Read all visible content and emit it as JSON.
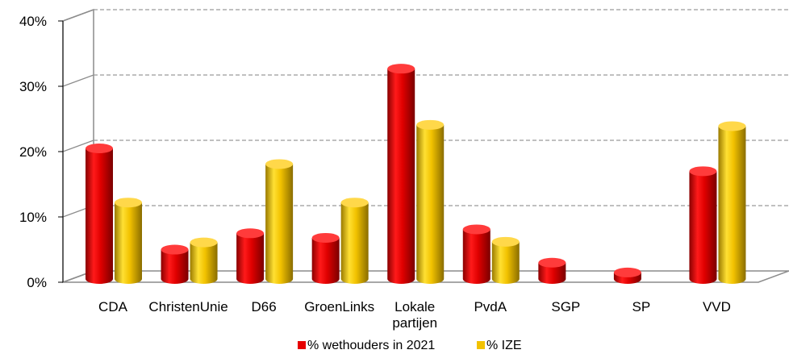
{
  "chart_data": {
    "type": "bar",
    "categories": [
      "CDA",
      "ChristenUnie",
      "D66",
      "GroenLinks",
      "Lokale partijen",
      "PvdA",
      "SGP",
      "SP",
      "VVD"
    ],
    "category_lines": [
      [
        "CDA"
      ],
      [
        "ChristenUnie"
      ],
      [
        "D66"
      ],
      [
        "GroenLinks"
      ],
      [
        "Lokale",
        "partijen"
      ],
      [
        "PvdA"
      ],
      [
        "SGP"
      ],
      [
        "SP"
      ],
      [
        "VVD"
      ]
    ],
    "series": [
      {
        "name": "% wethouders in 2021",
        "color": "#e60000",
        "values": [
          20,
          4.5,
          7,
          6.3,
          32.2,
          7.6,
          2.5,
          1,
          16.5
        ]
      },
      {
        "name": "% IZE",
        "color": "#f2c200",
        "values": [
          11.7,
          5.6,
          17.6,
          11.7,
          23.6,
          5.7,
          0,
          0,
          23.4
        ]
      }
    ],
    "yticks": [
      "0%",
      "10%",
      "20%",
      "30%",
      "40%"
    ],
    "ylim": [
      0,
      40
    ],
    "grid": true,
    "legend_position": "bottom",
    "title": "",
    "xlabel": "",
    "ylabel": ""
  }
}
